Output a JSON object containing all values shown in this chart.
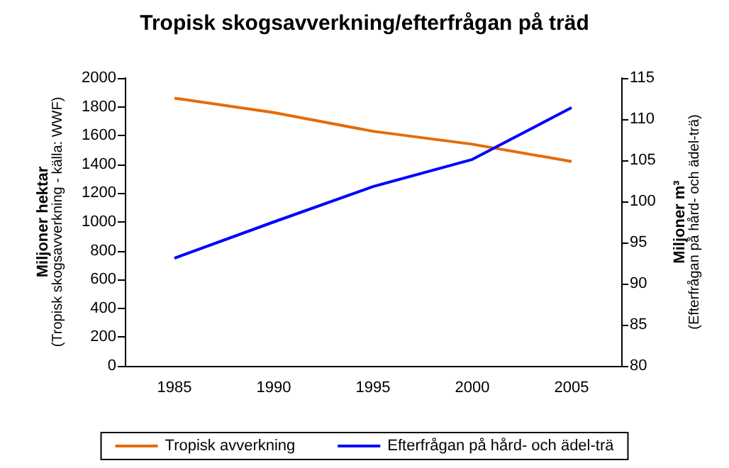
{
  "chart_data": {
    "type": "line",
    "title": "Tropisk skogsavverkning/efterfrågan på träd",
    "ylabel": "Miljoner hektar\n(Tropisk skogsavverkning - källa: WWF)",
    "y2label": "Miljoner m³\n(Efterfrågan på hård- och ädel-trä)",
    "categories": [
      "1985",
      "1990",
      "1995",
      "2000",
      "2005"
    ],
    "series": [
      {
        "name": "Tropisk avverkning",
        "color": "#e46c0a",
        "values": [
          1860,
          1760,
          1630,
          1540,
          1420
        ]
      },
      {
        "name": "Efterfrågan på hård- och ädel-trä",
        "color": "#0000ff",
        "axis": "y2",
        "values": [
          93.1,
          97.5,
          101.8,
          105.1,
          111.4
        ]
      }
    ],
    "ylim": [
      0,
      2000
    ],
    "yticks": [
      0,
      200,
      400,
      600,
      800,
      1000,
      1200,
      1400,
      1600,
      1800,
      2000
    ],
    "y2lim": [
      80,
      115
    ],
    "y2ticks": [
      80,
      85,
      90,
      95,
      100,
      105,
      110,
      115
    ],
    "grid": false,
    "legend": "bottom",
    "marker": "none",
    "line_style": "solid"
  }
}
